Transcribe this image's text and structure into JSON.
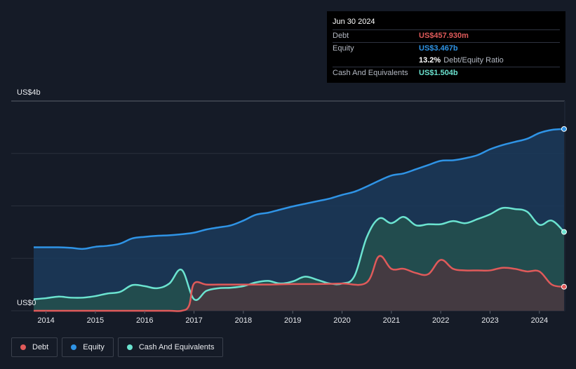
{
  "chart_data": {
    "type": "area",
    "title": "",
    "y_axis": {
      "min": 0,
      "max": 4,
      "unit": "US$b",
      "top_label": "US$4b",
      "bottom_label": "US$0"
    },
    "x_axis": {
      "min": 2013.75,
      "max": 2024.5,
      "ticks": [
        "2014",
        "2015",
        "2016",
        "2017",
        "2018",
        "2019",
        "2020",
        "2021",
        "2022",
        "2023",
        "2024"
      ],
      "tick_values": [
        2014,
        2015,
        2016,
        2017,
        2018,
        2019,
        2020,
        2021,
        2022,
        2023,
        2024
      ]
    },
    "series": [
      {
        "name": "Equity",
        "color": "#2f94e6",
        "fill": "#1b3a5c",
        "x": [
          2013.75,
          2014.25,
          2014.5,
          2014.75,
          2015.0,
          2015.25,
          2015.5,
          2015.75,
          2016.0,
          2016.25,
          2016.5,
          2016.75,
          2017.0,
          2017.25,
          2017.5,
          2017.75,
          2018.0,
          2018.25,
          2018.5,
          2018.75,
          2019.0,
          2019.25,
          2019.5,
          2019.75,
          2020.0,
          2020.25,
          2020.5,
          2020.75,
          2021.0,
          2021.25,
          2021.5,
          2021.75,
          2022.0,
          2022.25,
          2022.5,
          2022.75,
          2023.0,
          2023.25,
          2023.5,
          2023.75,
          2024.0,
          2024.25,
          2024.5
        ],
        "values": [
          1.21,
          1.21,
          1.2,
          1.18,
          1.22,
          1.24,
          1.28,
          1.38,
          1.41,
          1.43,
          1.44,
          1.46,
          1.49,
          1.55,
          1.59,
          1.63,
          1.72,
          1.83,
          1.87,
          1.93,
          1.99,
          2.04,
          2.09,
          2.14,
          2.21,
          2.27,
          2.37,
          2.48,
          2.58,
          2.62,
          2.7,
          2.78,
          2.86,
          2.87,
          2.91,
          2.97,
          3.08,
          3.16,
          3.22,
          3.28,
          3.39,
          3.45,
          3.467
        ]
      },
      {
        "name": "Cash And Equivalents",
        "color": "#6be3d0",
        "fill": "#25504e",
        "x": [
          2013.75,
          2014.0,
          2014.25,
          2014.5,
          2014.75,
          2015.0,
          2015.25,
          2015.5,
          2015.75,
          2016.0,
          2016.25,
          2016.5,
          2016.75,
          2017.0,
          2017.25,
          2017.5,
          2017.75,
          2018.0,
          2018.25,
          2018.5,
          2018.75,
          2019.0,
          2019.25,
          2019.5,
          2019.75,
          2020.0,
          2020.25,
          2020.5,
          2020.75,
          2021.0,
          2021.25,
          2021.5,
          2021.75,
          2022.0,
          2022.25,
          2022.5,
          2022.75,
          2023.0,
          2023.25,
          2023.5,
          2023.75,
          2024.0,
          2024.25,
          2024.5
        ],
        "values": [
          0.22,
          0.24,
          0.27,
          0.25,
          0.25,
          0.28,
          0.33,
          0.36,
          0.49,
          0.47,
          0.43,
          0.52,
          0.78,
          0.22,
          0.38,
          0.43,
          0.44,
          0.47,
          0.54,
          0.57,
          0.52,
          0.56,
          0.65,
          0.59,
          0.52,
          0.52,
          0.66,
          1.4,
          1.76,
          1.67,
          1.79,
          1.63,
          1.65,
          1.65,
          1.71,
          1.67,
          1.75,
          1.84,
          1.96,
          1.94,
          1.89,
          1.64,
          1.72,
          1.504
        ]
      },
      {
        "name": "Debt",
        "color": "#e05a5a",
        "fill": "#4a3740",
        "x": [
          2013.75,
          2014.0,
          2014.25,
          2014.5,
          2014.75,
          2015.0,
          2015.5,
          2016.0,
          2016.5,
          2016.75,
          2016.9,
          2017.0,
          2017.25,
          2017.5,
          2018.0,
          2018.5,
          2019.0,
          2019.5,
          2020.0,
          2020.5,
          2020.75,
          2021.0,
          2021.25,
          2021.5,
          2021.75,
          2022.0,
          2022.25,
          2022.5,
          2022.75,
          2023.0,
          2023.25,
          2023.5,
          2023.75,
          2024.0,
          2024.25,
          2024.5
        ],
        "values": [
          0.0,
          0.0,
          0.0,
          0.0,
          0.0,
          0.0,
          0.0,
          0.0,
          0.0,
          0.0,
          0.1,
          0.52,
          0.5,
          0.5,
          0.5,
          0.5,
          0.51,
          0.51,
          0.52,
          0.54,
          1.04,
          0.8,
          0.8,
          0.72,
          0.7,
          0.97,
          0.8,
          0.77,
          0.77,
          0.77,
          0.82,
          0.8,
          0.75,
          0.75,
          0.5,
          0.458
        ]
      }
    ]
  },
  "tooltip": {
    "date": "Jun 30 2024",
    "debt_label": "Debt",
    "debt_value": "US$457.930m",
    "debt_color": "#e05a5a",
    "equity_label": "Equity",
    "equity_value": "US$3.467b",
    "equity_color": "#2f94e6",
    "ratio_value": "13.2%",
    "ratio_label": "Debt/Equity Ratio",
    "cash_label": "Cash And Equivalents",
    "cash_value": "US$1.504b",
    "cash_color": "#6be3d0"
  },
  "legend": [
    {
      "label": "Debt",
      "color": "#e05a5a"
    },
    {
      "label": "Equity",
      "color": "#2f94e6"
    },
    {
      "label": "Cash And Equivalents",
      "color": "#6be3d0"
    }
  ]
}
